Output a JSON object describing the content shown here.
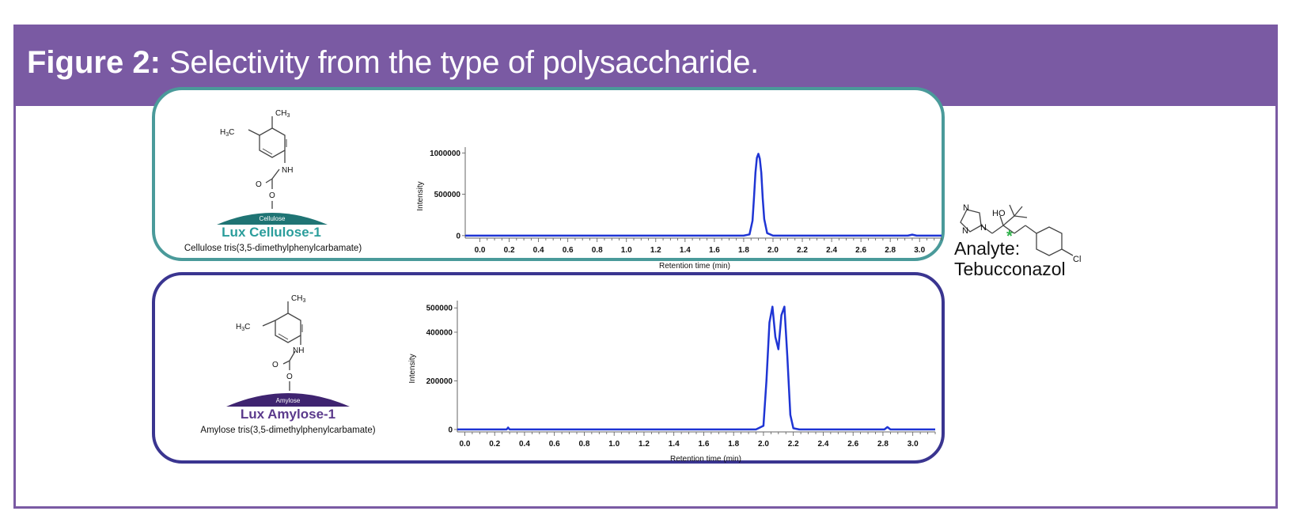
{
  "figure": {
    "label": "Figure 2:",
    "caption": "Selectivity from the type of polysaccharide.",
    "header_color": "#7a5aa3"
  },
  "structure_labels": {
    "ch3": "CH",
    "h3c": "H",
    "c": "C",
    "sub3": "3",
    "nh": "NH",
    "o": "O"
  },
  "panels": [
    {
      "support_label": "Cellulose",
      "selector_name": "Lux Cellulose-1",
      "selector_full_name": "Cellulose tris(3,5-dimethylphenylcarbamate)",
      "border_color": "#4a9a9a",
      "name_color": "#2a9d9b",
      "support_color": "#1f7474"
    },
    {
      "support_label": "Amylose",
      "selector_name": "Lux Amylose-1",
      "selector_full_name": "Amylose tris(3,5-dimethylphenylcarbamate)",
      "border_color": "#3a3590",
      "name_color": "#5b3a8c",
      "support_color": "#3f2470"
    }
  ],
  "chart_data": [
    {
      "type": "line",
      "xlabel": "Retention time (min)",
      "ylabel": "Intensity",
      "xlim": [
        -0.1,
        3.15
      ],
      "ylim": [
        -30000,
        1070000
      ],
      "xticks": [
        0.0,
        0.2,
        0.4,
        0.6,
        0.8,
        1.0,
        1.2,
        1.4,
        1.6,
        1.8,
        2.0,
        2.2,
        2.4,
        2.6,
        2.8,
        3.0
      ],
      "xtick_labels": [
        "0.0",
        "0.2",
        "0.4",
        "0.6",
        "0.8",
        "1.0",
        "1.2",
        "1.4",
        "1.6",
        "1.8",
        "2.0",
        "2.2",
        "2.4",
        "2.6",
        "2.8",
        "3.0"
      ],
      "yticks": [
        0,
        500000,
        1000000
      ],
      "ytick_labels": [
        "0",
        "500000",
        "1000000"
      ],
      "grid": false,
      "line_color": "#1f35d4",
      "series": [
        {
          "x": [
            -0.1,
            1.8,
            1.84,
            1.86,
            1.87,
            1.88,
            1.89,
            1.9,
            1.91,
            1.92,
            1.93,
            1.94,
            1.96,
            2.0,
            2.92,
            2.95,
            2.98,
            3.15
          ],
          "y": [
            0,
            0,
            15000,
            180000,
            450000,
            760000,
            940000,
            990000,
            930000,
            760000,
            450000,
            200000,
            30000,
            0,
            0,
            12000,
            0,
            0
          ]
        }
      ]
    },
    {
      "type": "line",
      "xlabel": "Retention time (min)",
      "ylabel": "Intensity",
      "xlim": [
        -0.05,
        3.15
      ],
      "ylim": [
        -10000,
        530000
      ],
      "xticks": [
        0.0,
        0.2,
        0.4,
        0.6,
        0.8,
        1.0,
        1.2,
        1.4,
        1.6,
        1.8,
        2.0,
        2.2,
        2.4,
        2.6,
        2.8,
        3.0
      ],
      "xtick_labels": [
        "0.0",
        "0.2",
        "0.4",
        "0.6",
        "0.8",
        "1.0",
        "1.2",
        "1.4",
        "1.6",
        "1.8",
        "2.0",
        "2.2",
        "2.4",
        "2.6",
        "2.8",
        "3.0"
      ],
      "yticks": [
        0,
        200000,
        400000,
        500000
      ],
      "ytick_labels": [
        "0",
        "200000",
        "400000",
        "500000"
      ],
      "grid": false,
      "line_color": "#1f35d4",
      "series": [
        {
          "x": [
            -0.05,
            0.28,
            0.29,
            0.3,
            1.95,
            2.0,
            2.02,
            2.04,
            2.06,
            2.08,
            2.1,
            2.12,
            2.14,
            2.16,
            2.18,
            2.2,
            2.24,
            2.81,
            2.83,
            2.85,
            3.15
          ],
          "y": [
            0,
            0,
            8000,
            0,
            0,
            15000,
            200000,
            440000,
            505000,
            380000,
            330000,
            470000,
            505000,
            300000,
            60000,
            5000,
            0,
            0,
            10000,
            0,
            0
          ]
        }
      ]
    }
  ],
  "analyte": {
    "atom_labels": {
      "n": "N",
      "ho": "HO",
      "cl": "Cl",
      "star": "*"
    },
    "line1": "Analyte:",
    "line2": "Tebucconazol",
    "star_color": "#2fb14a"
  }
}
